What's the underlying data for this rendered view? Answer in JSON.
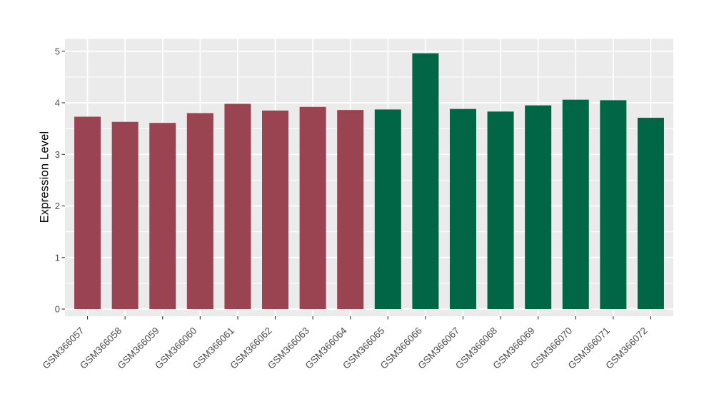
{
  "chart_data": {
    "type": "bar",
    "title": "",
    "xlabel": "",
    "ylabel": "Expression Level",
    "categories": [
      "GSM366057",
      "GSM366058",
      "GSM366059",
      "GSM366060",
      "GSM366061",
      "GSM366062",
      "GSM366063",
      "GSM366064",
      "GSM366065",
      "GSM366066",
      "GSM366067",
      "GSM366068",
      "GSM366069",
      "GSM366070",
      "GSM366071",
      "GSM366072"
    ],
    "values": [
      3.73,
      3.63,
      3.61,
      3.8,
      3.98,
      3.85,
      3.92,
      3.86,
      3.87,
      4.96,
      3.88,
      3.83,
      3.95,
      4.06,
      4.05,
      3.71
    ],
    "bar_colors": [
      "#9A4451",
      "#9A4451",
      "#9A4451",
      "#9A4451",
      "#9A4451",
      "#9A4451",
      "#9A4451",
      "#9A4451",
      "#006646",
      "#006646",
      "#006646",
      "#006646",
      "#006646",
      "#006646",
      "#006646",
      "#006646"
    ],
    "group_colors": {
      "left_group": "#9A4451",
      "right_group": "#006646"
    },
    "ylim": [
      0,
      5
    ],
    "yticks": [
      0,
      1,
      2,
      3,
      4,
      5
    ],
    "ytick_labels": [
      "0",
      "1",
      "2",
      "3",
      "4",
      "5"
    ],
    "x_tick_rotation_deg": 45,
    "legend_position": "none",
    "grid": {
      "major_horizontal": true,
      "minor_horizontal": true,
      "vertical_at_category_centers": true
    },
    "colors": {
      "panel_background": "#EBEBEB",
      "figure_background": "#FFFFFF",
      "gridline": "#FFFFFF",
      "tick_mark": "#333333",
      "tick_label": "#4D4D4D",
      "axis_title": "#000000"
    }
  }
}
